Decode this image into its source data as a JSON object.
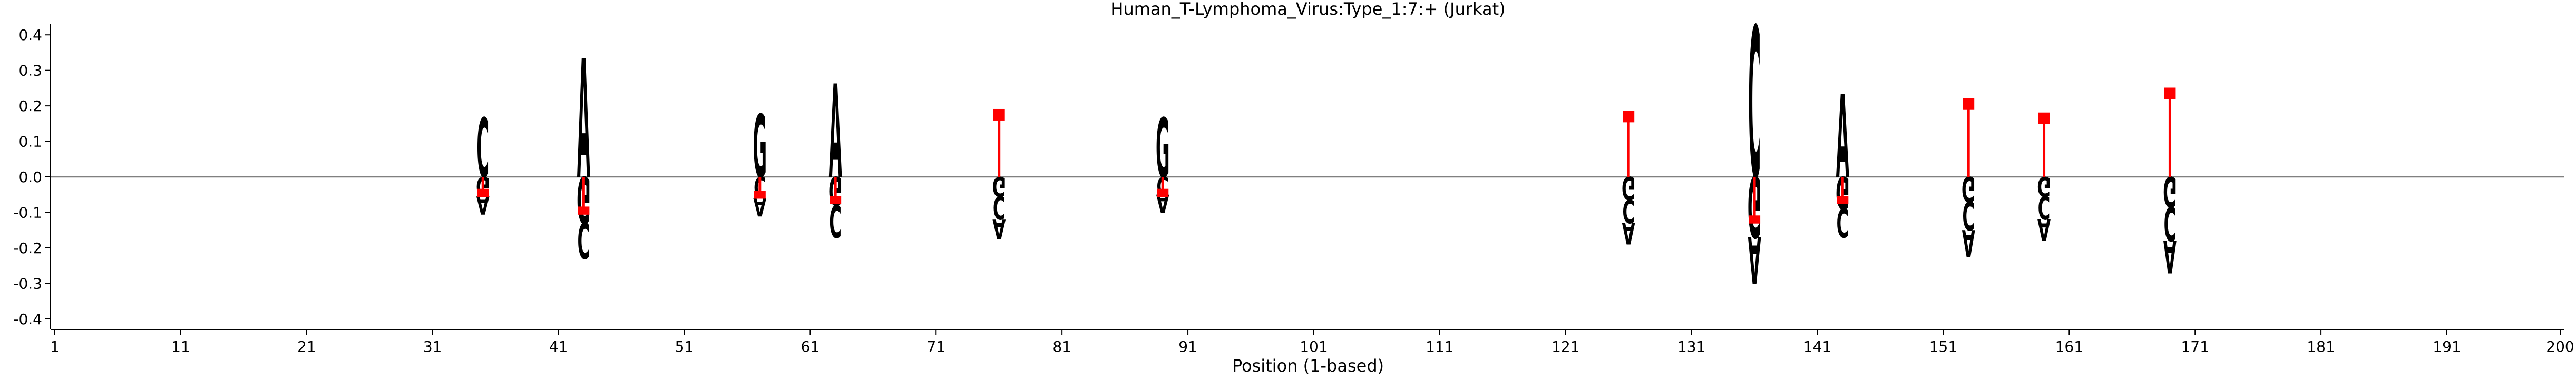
{
  "chart_data": {
    "type": "sequence-logo",
    "title": "Human_T-Lymphoma_Virus:Type_1:7:+  (Jurkat)",
    "xlabel": "Position (1-based)",
    "ylabel": "",
    "xlim": [
      1,
      200
    ],
    "ylim": [
      -0.43,
      0.43
    ],
    "x_ticks": [
      1,
      11,
      21,
      31,
      41,
      51,
      61,
      71,
      81,
      91,
      101,
      111,
      121,
      131,
      141,
      151,
      161,
      171,
      181,
      191,
      200
    ],
    "y_ticks": [
      -0.4,
      -0.3,
      -0.2,
      -0.1,
      0.0,
      0.1,
      0.2,
      0.3,
      0.4
    ],
    "colors": {
      "A": "#008000",
      "C": "#0000ff",
      "G": "#ffa500",
      "marker": "#ff0000",
      "baseline": "#808080"
    },
    "positions": [
      {
        "x": 35,
        "above": [
          {
            "base": "C",
            "h": 0.165
          }
        ],
        "below": [
          {
            "base": "G",
            "h": 0.055
          },
          {
            "base": "A",
            "h": 0.05
          }
        ],
        "marker": -0.05
      },
      {
        "x": 43,
        "above": [
          {
            "base": "A",
            "h": 0.33
          }
        ],
        "below": [
          {
            "base": "G",
            "h": 0.13
          },
          {
            "base": "C",
            "h": 0.1
          }
        ],
        "marker": -0.1
      },
      {
        "x": 57,
        "above": [
          {
            "base": "G",
            "h": 0.175
          }
        ],
        "below": [
          {
            "base": "C",
            "h": 0.06
          },
          {
            "base": "A",
            "h": 0.05
          }
        ],
        "marker": -0.055
      },
      {
        "x": 63,
        "above": [
          {
            "base": "A",
            "h": 0.26
          }
        ],
        "below": [
          {
            "base": "G",
            "h": 0.08
          },
          {
            "base": "C",
            "h": 0.09
          }
        ],
        "marker": -0.07
      },
      {
        "x": 76,
        "above": [],
        "below": [
          {
            "base": "G",
            "h": 0.055
          },
          {
            "base": "C",
            "h": 0.065
          },
          {
            "base": "A",
            "h": 0.055
          }
        ],
        "marker": 0.175
      },
      {
        "x": 89,
        "above": [
          {
            "base": "G",
            "h": 0.165
          }
        ],
        "below": [
          {
            "base": "C",
            "h": 0.05
          },
          {
            "base": "A",
            "h": 0.05
          }
        ],
        "marker": -0.05
      },
      {
        "x": 126,
        "above": [],
        "below": [
          {
            "base": "G",
            "h": 0.065
          },
          {
            "base": "C",
            "h": 0.065
          },
          {
            "base": "A",
            "h": 0.06
          }
        ],
        "marker": 0.17
      },
      {
        "x": 136,
        "above": [
          {
            "base": "C",
            "h": 0.42
          }
        ],
        "below": [
          {
            "base": "G",
            "h": 0.17
          },
          {
            "base": "A",
            "h": 0.13
          }
        ],
        "marker": -0.125
      },
      {
        "x": 143,
        "above": [
          {
            "base": "A",
            "h": 0.23
          }
        ],
        "below": [
          {
            "base": "G",
            "h": 0.09
          },
          {
            "base": "C",
            "h": 0.08
          }
        ],
        "marker": -0.07
      },
      {
        "x": 153,
        "above": [],
        "below": [
          {
            "base": "G",
            "h": 0.07
          },
          {
            "base": "C",
            "h": 0.08
          },
          {
            "base": "A",
            "h": 0.075
          }
        ],
        "marker": 0.205
      },
      {
        "x": 159,
        "above": [],
        "below": [
          {
            "base": "G",
            "h": 0.055
          },
          {
            "base": "C",
            "h": 0.065
          },
          {
            "base": "A",
            "h": 0.06
          }
        ],
        "marker": 0.165
      },
      {
        "x": 169,
        "above": [],
        "below": [
          {
            "base": "G",
            "h": 0.085
          },
          {
            "base": "C",
            "h": 0.095
          },
          {
            "base": "A",
            "h": 0.09
          }
        ],
        "marker": 0.235
      }
    ]
  }
}
